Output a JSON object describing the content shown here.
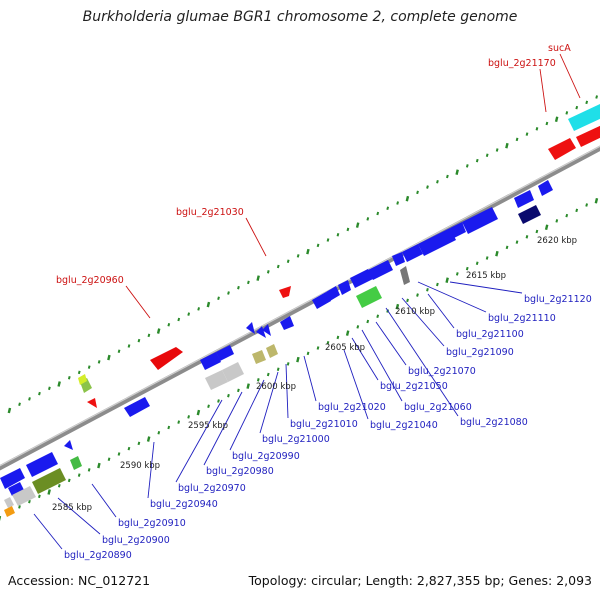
{
  "title": "Burkholderia glumae BGR1 chromosome 2, complete genome",
  "footer": {
    "accession": "Accession: NC_012721",
    "summary": "Topology: circular; Length: 2,827,355 bp; Genes: 2,093"
  },
  "colors": {
    "forward_gene": "#0000ee",
    "reverse_gene": "#ee0000",
    "tick": "#2b8a2b",
    "backbone": "#8c8c8c",
    "blue_label": "#1f1fbf",
    "red_label": "#cc1111"
  },
  "scale_labels": [
    "2585 kbp",
    "2590 kbp",
    "2595 kbp",
    "2600 kbp",
    "2605 kbp",
    "2610 kbp",
    "2615 kbp",
    "2620 kbp"
  ],
  "gene_labels_forward": [
    "bglu_2g20890",
    "bglu_2g20900",
    "bglu_2g20910",
    "bglu_2g20940",
    "bglu_2g20970",
    "bglu_2g20980",
    "bglu_2g20990",
    "bglu_2g21000",
    "bglu_2g21010",
    "bglu_2g21020",
    "bglu_2g21040",
    "bglu_2g21050",
    "bglu_2g21060",
    "bglu_2g21070",
    "bglu_2g21080",
    "bglu_2g21090",
    "bglu_2g21100",
    "bglu_2g21110",
    "bglu_2g21120"
  ],
  "gene_labels_reverse": [
    "bglu_2g20960",
    "bglu_2g21030",
    "bglu_2g21170",
    "sucA"
  ]
}
